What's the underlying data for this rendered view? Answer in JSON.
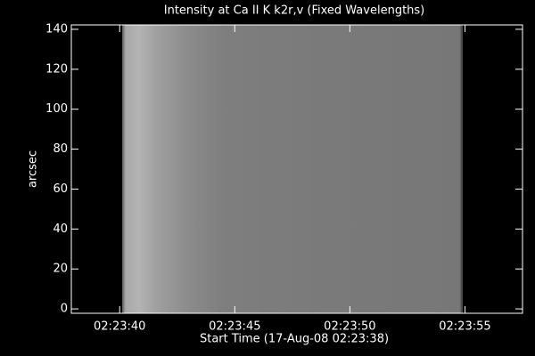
{
  "chart_data": {
    "type": "image",
    "title": "Intensity at Ca II K k2r,v (Fixed Wavelengths)",
    "x_label": "Start Time (17-Aug-08 02:23:38)",
    "y_label": "arcsec",
    "xlim": [
      -0.1,
      19.5
    ],
    "xticks": [
      {
        "value": 2,
        "label": "02:23:40"
      },
      {
        "value": 7,
        "label": "02:23:45"
      },
      {
        "value": 12,
        "label": "02:23:50"
      },
      {
        "value": 17,
        "label": "02:23:55"
      }
    ],
    "ylim": [
      -2.2,
      142.2
    ],
    "yticks": [
      0,
      20,
      40,
      60,
      80,
      100,
      120,
      140
    ]
  }
}
